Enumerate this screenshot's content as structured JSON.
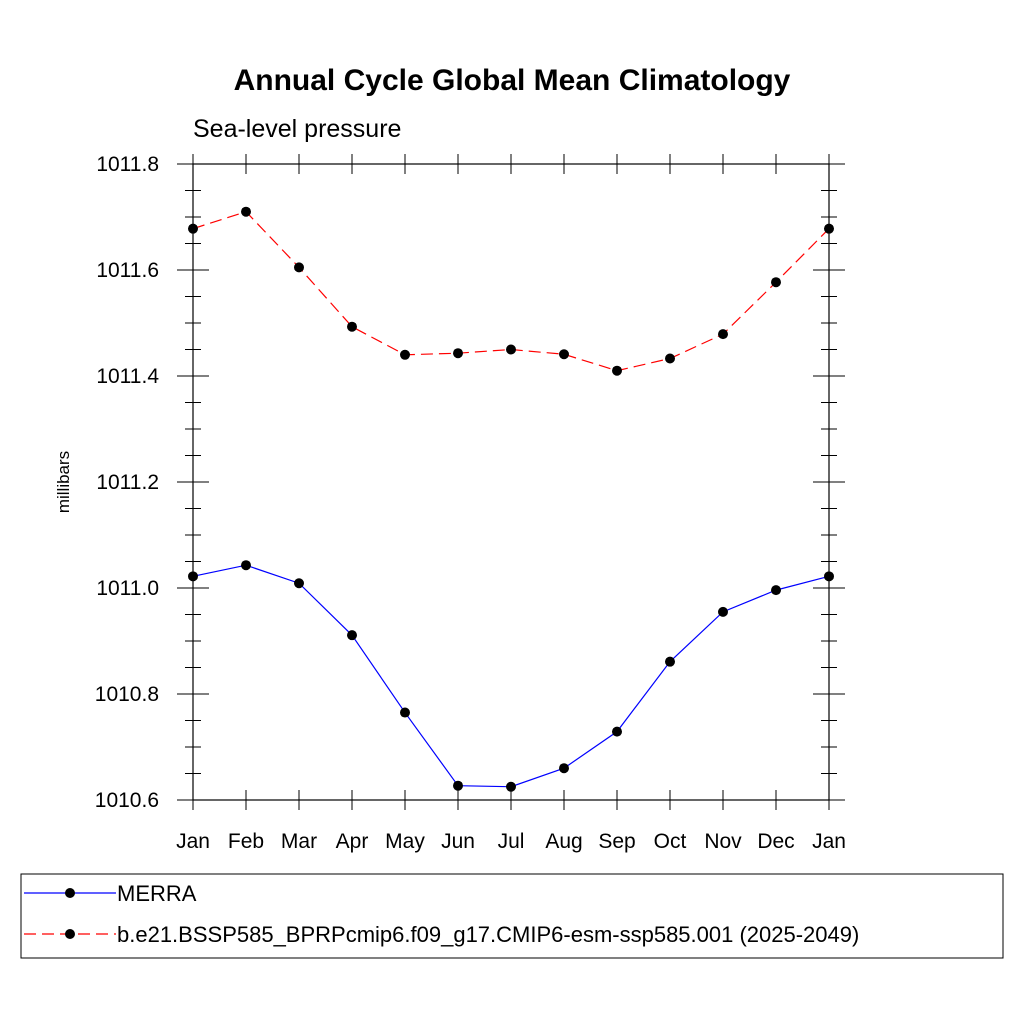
{
  "chart_data": {
    "type": "line",
    "title": "Annual Cycle Global Mean Climatology",
    "subtitle": "Sea-level pressure",
    "xlabel": "",
    "ylabel": "millibars",
    "categories": [
      "Jan",
      "Feb",
      "Mar",
      "Apr",
      "May",
      "Jun",
      "Jul",
      "Aug",
      "Sep",
      "Oct",
      "Nov",
      "Dec",
      "Jan"
    ],
    "ylim": [
      1010.6,
      1011.8
    ],
    "yticks": [
      "1010.6",
      "1010.8",
      "1011.0",
      "1011.2",
      "1011.4",
      "1011.6",
      "1011.8"
    ],
    "yminor_step": 0.05,
    "legend_position": "bottom",
    "series": [
      {
        "name": "MERRA",
        "color": "#0000ff",
        "dash": "solid",
        "marker": "filled-circle",
        "values": [
          1011.022,
          1011.043,
          1011.009,
          1010.911,
          1010.765,
          1010.627,
          1010.625,
          1010.66,
          1010.729,
          1010.861,
          1010.955,
          1010.996,
          1011.022
        ]
      },
      {
        "name": "b.e21.BSSP585_BPRPcmip6.f09_g17.CMIP6-esm-ssp585.001 (2025-2049)",
        "color": "#ff0000",
        "dash": "dashed",
        "marker": "filled-circle",
        "values": [
          1011.678,
          1011.71,
          1011.605,
          1011.493,
          1011.44,
          1011.443,
          1011.45,
          1011.441,
          1011.41,
          1011.433,
          1011.479,
          1011.577,
          1011.678
        ]
      }
    ]
  }
}
